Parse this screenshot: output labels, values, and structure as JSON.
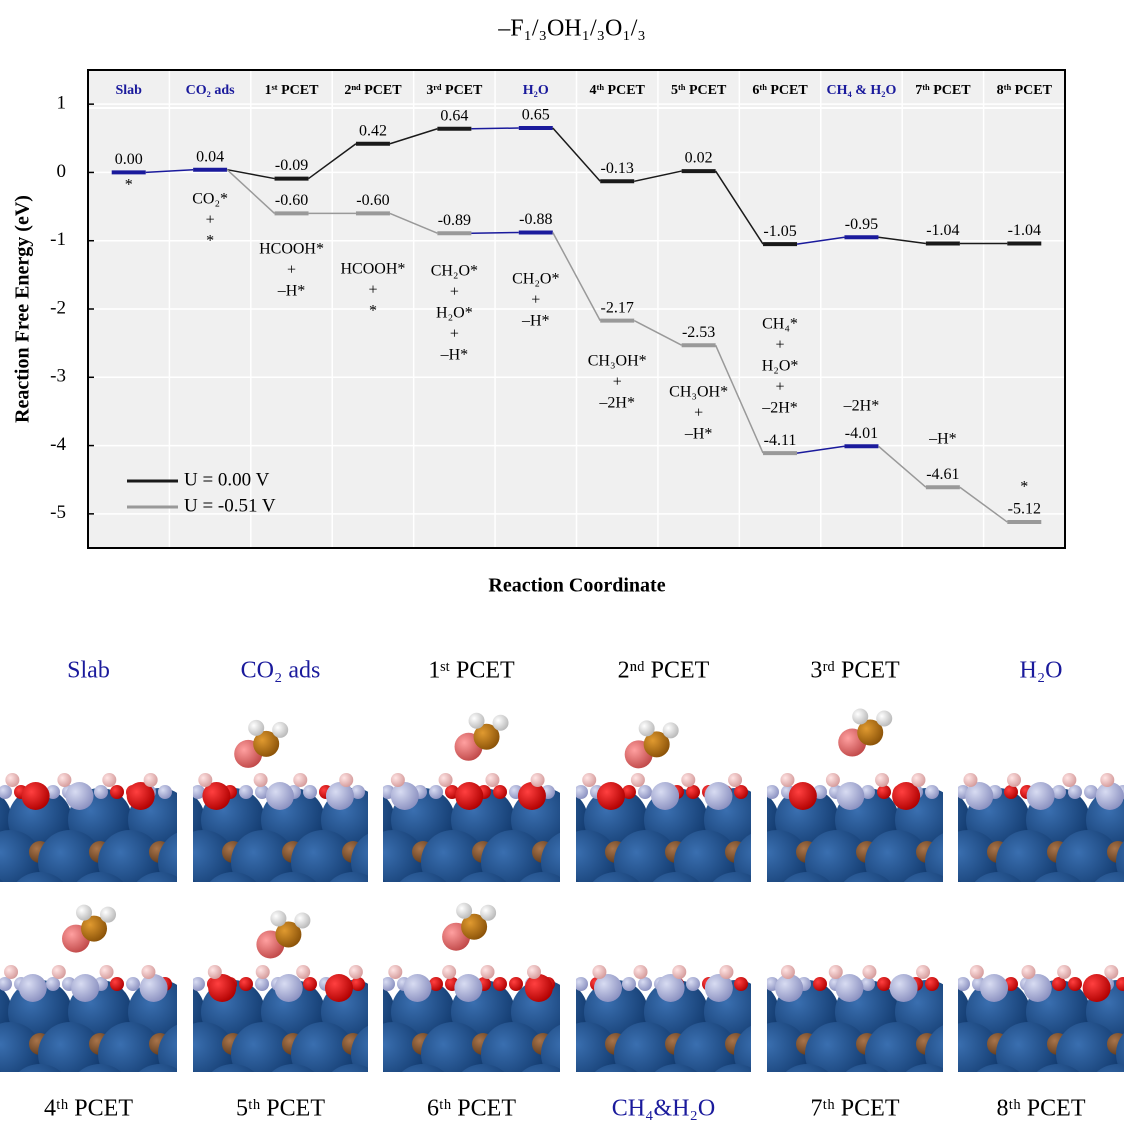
{
  "chart_data": {
    "type": "energy",
    "title": "–F₁/₃OH₁/₃O₁/₃",
    "xlabel": "Reaction Coordinate",
    "ylabel": "Reaction  Free  Energy (eV)",
    "categories": [
      "Slab",
      "CO₂ ads",
      "1ˢᵗ PCET",
      "2ⁿᵈ PCET",
      "3ʳᵈ PCET",
      "H₂O",
      "4ᵗʰ PCET",
      "5ᵗʰ PCET",
      "6ᵗʰ PCET",
      "CH₄ & H₂O",
      "7ᵗʰ PCET",
      "8ᵗʰ PCET"
    ],
    "category_colors": [
      "#1a1a9c",
      "#1a1a9c",
      "#000000",
      "#000000",
      "#000000",
      "#1a1a9c",
      "#000000",
      "#000000",
      "#000000",
      "#1a1a9c",
      "#000000",
      "#000000"
    ],
    "series": [
      {
        "name": "U = 0.00 V",
        "color": "#1a1a1a",
        "values": [
          0,
          0.04,
          -0.09,
          0.42,
          0.64,
          0.65,
          -0.13,
          0.02,
          -1.05,
          -0.95,
          -1.04,
          -1.04
        ],
        "value_labels": [
          "0.00",
          "0.04",
          "-0.09",
          "0.42",
          "0.64",
          "0.65",
          "-0.13",
          "0.02",
          "-1.05",
          "-0.95",
          "-1.04",
          "-1.04"
        ]
      },
      {
        "name": "U = -0.51 V",
        "color": "#999999",
        "values": [
          null,
          null,
          -0.6,
          -0.6,
          -0.89,
          -0.88,
          -2.17,
          -2.53,
          -4.11,
          -4.01,
          -4.61,
          -5.12
        ],
        "value_labels": [
          null,
          null,
          "-0.60",
          "-0.60",
          "-0.89",
          "-0.88",
          "-2.17",
          "-2.53",
          "-4.11",
          "-4.01",
          "-4.61",
          "-5.12"
        ]
      }
    ],
    "species": [
      [
        "*"
      ],
      [
        "CO₂*",
        "+",
        "*"
      ],
      [
        "HCOOH*",
        "+",
        "–H*"
      ],
      [
        "HCOOH*",
        "+",
        "*"
      ],
      [
        "CH₂O*",
        "+",
        "H₂O*",
        "+",
        "–H*"
      ],
      [
        "CH₂O*",
        "+",
        "–H*"
      ],
      [
        "CH₃OH*",
        "+",
        "–2H*"
      ],
      [
        "CH₃OH*",
        "+",
        "–H*"
      ],
      [
        "CH₄*",
        "+",
        "H₂O*",
        "+",
        "–2H*"
      ],
      [
        "–2H*"
      ],
      [
        "–H*"
      ],
      [
        "*"
      ]
    ],
    "ylim": [
      -5.5,
      1.5
    ],
    "yticks": [
      1,
      0,
      -1,
      -2,
      -3,
      -4,
      -5
    ],
    "grid": true,
    "legend": "lower-left",
    "highlight_color": "#1a1a9c"
  },
  "panels": {
    "top": [
      "Slab",
      "CO₂ ads",
      "1ˢᵗ PCET",
      "2ⁿᵈ PCET",
      "3ʳᵈ PCET",
      "H₂O"
    ],
    "top_colors": [
      "#1a1a9c",
      "#1a1a9c",
      "#000000",
      "#000000",
      "#000000",
      "#1a1a9c"
    ],
    "bottom": [
      "4ᵗʰ PCET",
      "5ᵗʰ PCET",
      "6ᵗʰ PCET",
      "CH₄&H₂O",
      "7ᵗʰ PCET",
      "8ᵗʰ PCET"
    ],
    "bottom_colors": [
      "#000000",
      "#000000",
      "#000000",
      "#1a1a9c",
      "#000000",
      "#000000"
    ]
  }
}
